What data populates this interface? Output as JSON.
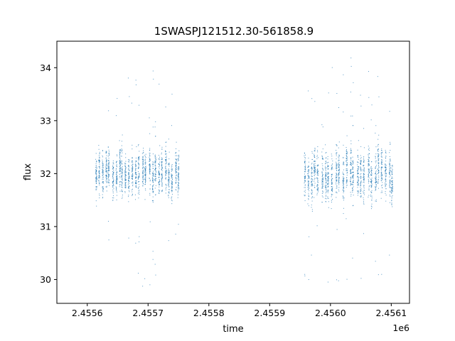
{
  "chart_data": {
    "type": "scatter",
    "title": "1SWASPJ121512.30-561858.9",
    "xlabel": "time",
    "ylabel": "flux",
    "x_offset_label": "1e6",
    "xlim": [
      2.45555,
      2.45613
    ],
    "ylim": [
      29.55,
      34.5
    ],
    "x_ticks": [
      2.4556,
      2.4557,
      2.4558,
      2.4559,
      2.456,
      2.4561
    ],
    "x_tick_labels": [
      "2.4556",
      "2.4557",
      "2.4558",
      "2.4559",
      "2.4560",
      "2.4561"
    ],
    "y_ticks": [
      30,
      31,
      32,
      33,
      34
    ],
    "y_tick_labels": [
      "30",
      "31",
      "32",
      "33",
      "34"
    ],
    "grid": false,
    "legend": "none",
    "marker_color": "#1f77b4",
    "series": [
      {
        "segments": [
          {
            "x_start": 2.455613,
            "x_end": 2.455755,
            "y_center": 32.0,
            "y_spread": 0.35,
            "outlier_min": 29.8,
            "outlier_max": 34.05
          },
          {
            "x_start": 2.455955,
            "x_end": 2.456107,
            "y_center": 32.0,
            "y_spread": 0.4,
            "outlier_min": 29.9,
            "outlier_max": 34.3
          }
        ]
      }
    ]
  }
}
